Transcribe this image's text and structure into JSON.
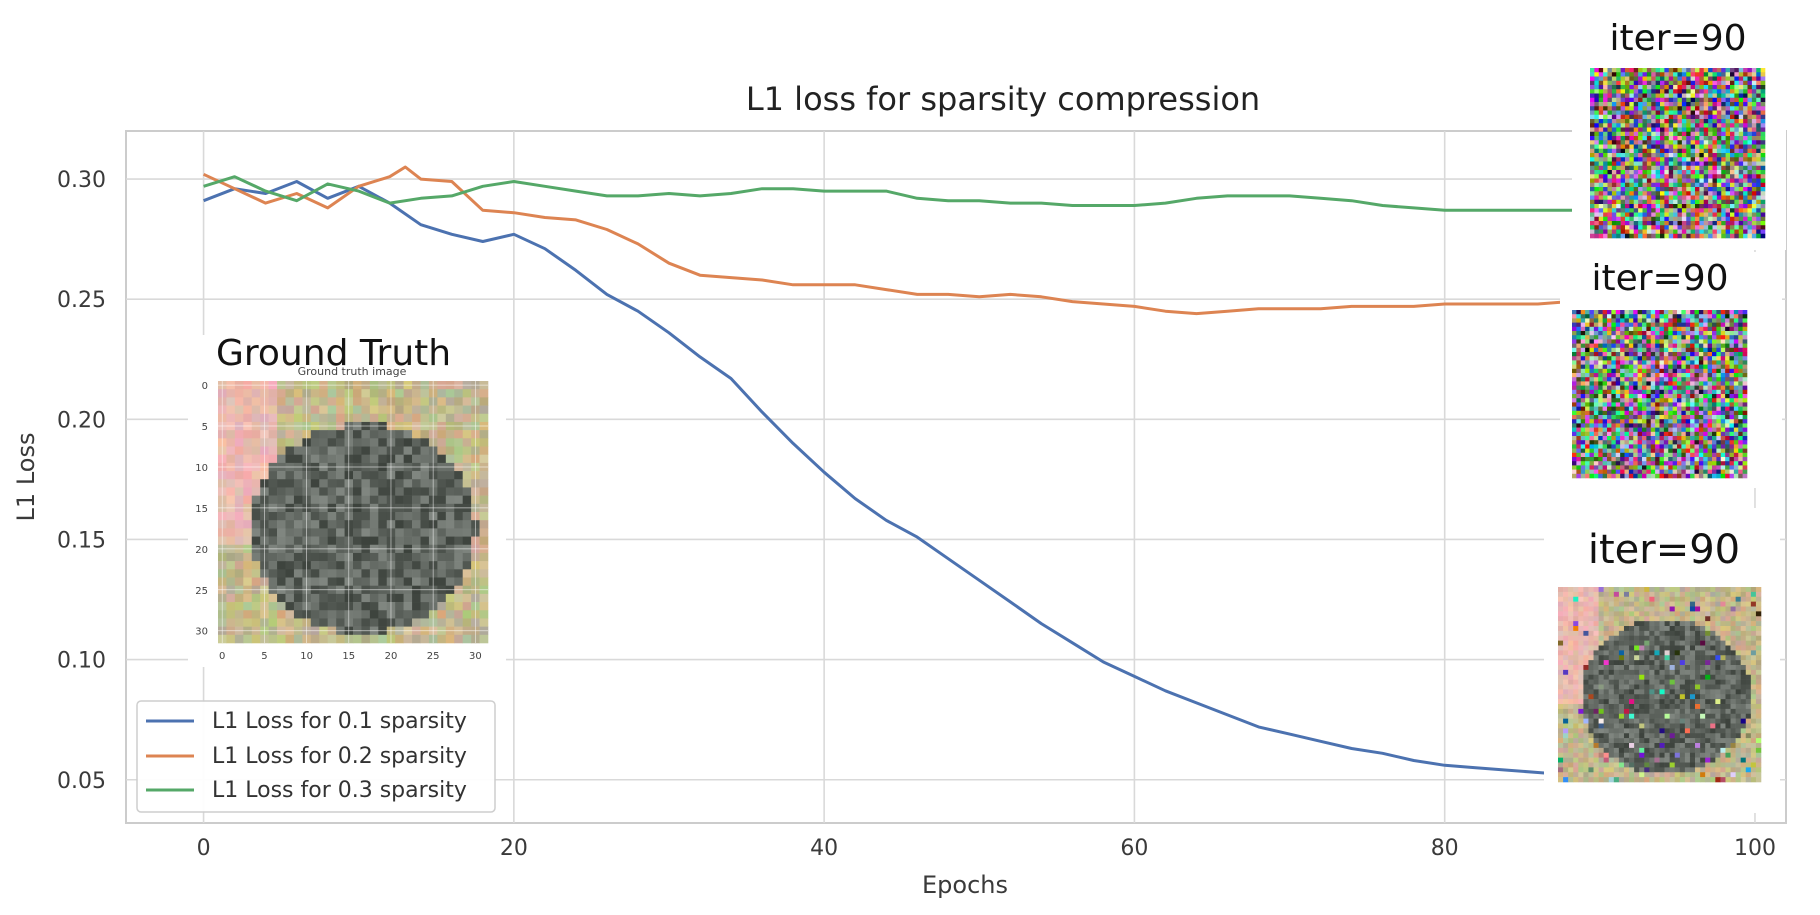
{
  "chart_data": {
    "type": "line",
    "title": "L1 loss for sparsity compression",
    "xlabel": "Epochs",
    "ylabel": "L1 Loss",
    "xlim": [
      -5,
      102
    ],
    "ylim": [
      0.032,
      0.32
    ],
    "xticks": [
      "0",
      "20",
      "40",
      "60",
      "80",
      "100"
    ],
    "yticks": [
      "0.05",
      "0.10",
      "0.15",
      "0.20",
      "0.25",
      "0.30"
    ],
    "grid": true,
    "legend_position": "lower-left",
    "series": [
      {
        "name": "L1 Loss for 0.1 sparsity",
        "color": "#4c72b0",
        "x": [
          0,
          2,
          4,
          6,
          8,
          10,
          12,
          14,
          16,
          18,
          20,
          22,
          24,
          26,
          28,
          30,
          32,
          34,
          36,
          38,
          40,
          42,
          44,
          46,
          48,
          50,
          52,
          54,
          56,
          58,
          60,
          62,
          64,
          66,
          68,
          70,
          72,
          74,
          76,
          78,
          80,
          82,
          84,
          86,
          88
        ],
        "y": [
          0.291,
          0.296,
          0.294,
          0.299,
          0.292,
          0.297,
          0.29,
          0.281,
          0.277,
          0.274,
          0.277,
          0.271,
          0.262,
          0.252,
          0.245,
          0.236,
          0.226,
          0.217,
          0.203,
          0.19,
          0.178,
          0.167,
          0.158,
          0.151,
          0.142,
          0.133,
          0.124,
          0.115,
          0.107,
          0.099,
          0.093,
          0.087,
          0.082,
          0.077,
          0.072,
          0.069,
          0.066,
          0.063,
          0.061,
          0.058,
          0.056,
          0.055,
          0.054,
          0.053,
          0.052
        ]
      },
      {
        "name": "L1 Loss for 0.2 sparsity",
        "color": "#dd8452",
        "x": [
          0,
          2,
          4,
          6,
          8,
          10,
          12,
          13,
          14,
          16,
          18,
          20,
          22,
          24,
          26,
          28,
          30,
          32,
          34,
          36,
          38,
          40,
          42,
          44,
          46,
          48,
          50,
          52,
          54,
          56,
          58,
          60,
          62,
          64,
          66,
          68,
          70,
          72,
          74,
          76,
          78,
          80,
          82,
          84,
          86,
          88
        ],
        "y": [
          0.302,
          0.296,
          0.29,
          0.294,
          0.288,
          0.297,
          0.301,
          0.305,
          0.3,
          0.299,
          0.287,
          0.286,
          0.284,
          0.283,
          0.279,
          0.273,
          0.265,
          0.26,
          0.259,
          0.258,
          0.256,
          0.256,
          0.256,
          0.254,
          0.252,
          0.252,
          0.251,
          0.252,
          0.251,
          0.249,
          0.248,
          0.247,
          0.245,
          0.244,
          0.245,
          0.246,
          0.246,
          0.246,
          0.247,
          0.247,
          0.247,
          0.248,
          0.248,
          0.248,
          0.248,
          0.249
        ]
      },
      {
        "name": "L1 Loss for 0.3 sparsity",
        "color": "#55a868",
        "x": [
          0,
          2,
          4,
          6,
          8,
          10,
          12,
          14,
          16,
          18,
          20,
          22,
          24,
          26,
          28,
          30,
          32,
          34,
          36,
          38,
          40,
          42,
          44,
          46,
          48,
          50,
          52,
          54,
          56,
          58,
          60,
          62,
          64,
          66,
          68,
          70,
          72,
          74,
          76,
          78,
          80,
          82,
          84,
          86,
          88,
          89
        ],
        "y": [
          0.297,
          0.301,
          0.295,
          0.291,
          0.298,
          0.295,
          0.29,
          0.292,
          0.293,
          0.297,
          0.299,
          0.297,
          0.295,
          0.293,
          0.293,
          0.294,
          0.293,
          0.294,
          0.296,
          0.296,
          0.295,
          0.295,
          0.295,
          0.292,
          0.291,
          0.291,
          0.29,
          0.29,
          0.289,
          0.289,
          0.289,
          0.29,
          0.292,
          0.293,
          0.293,
          0.293,
          0.292,
          0.291,
          0.289,
          0.288,
          0.287,
          0.287,
          0.287,
          0.287,
          0.287,
          0.287
        ]
      }
    ],
    "insets": {
      "ground_truth": {
        "title": "Ground Truth",
        "subtitle": "Ground truth image",
        "xticks": [
          "0",
          "5",
          "10",
          "15",
          "20",
          "25",
          "30"
        ],
        "yticks": [
          "0",
          "5",
          "10",
          "15",
          "20",
          "25",
          "30"
        ]
      },
      "iterations": [
        {
          "label": "iter=90",
          "kind": "noise",
          "seed": 7
        },
        {
          "label": "iter=90",
          "kind": "noise",
          "seed": 13
        },
        {
          "label": "iter=90",
          "kind": "reconstruction",
          "seed": 21
        }
      ]
    }
  }
}
